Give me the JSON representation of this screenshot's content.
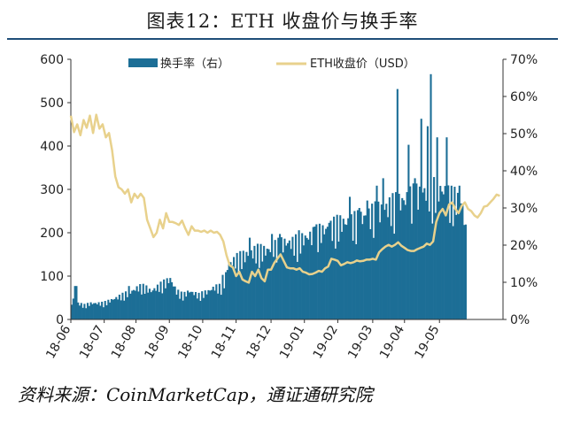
{
  "title": "图表12：ETH 收盘价与换手率",
  "source": "资料来源：CoinMarketCap，通证通研究院",
  "colors": {
    "bar": "#1c6e96",
    "line": "#e8d18c",
    "rule": "#1f4e79"
  },
  "chart_data": {
    "type": "bar+line",
    "legend": [
      "换手率（右）",
      "ETH收盘价（USD）"
    ],
    "legend_position": "top",
    "left_axis": {
      "min": 0,
      "max": 600,
      "ticks": [
        "0",
        "100",
        "200",
        "300",
        "400",
        "500",
        "600"
      ]
    },
    "right_axis": {
      "min": 0,
      "max": 70,
      "ticks": [
        "0%",
        "10%",
        "20%",
        "30%",
        "40%",
        "50%",
        "60%",
        "70%"
      ]
    },
    "x_ticks": [
      "18-06",
      "18-07",
      "18-08",
      "18-09",
      "18-10",
      "18-11",
      "18-12",
      "19-01",
      "19-02",
      "19-03",
      "19-04",
      "19-05"
    ],
    "series": [
      {
        "name": "换手率（右）",
        "kind": "bar",
        "axis": "right",
        "knots": [
          [
            0,
            4
          ],
          [
            2,
            6
          ],
          [
            4,
            4
          ],
          [
            8,
            3.5
          ],
          [
            12,
            4
          ],
          [
            20,
            4
          ],
          [
            26,
            5
          ],
          [
            32,
            6
          ],
          [
            38,
            7
          ],
          [
            42,
            8
          ],
          [
            46,
            8
          ],
          [
            50,
            7
          ],
          [
            54,
            8
          ],
          [
            58,
            9
          ],
          [
            62,
            10
          ],
          [
            66,
            7
          ],
          [
            70,
            6
          ],
          [
            74,
            7
          ],
          [
            80,
            6
          ],
          [
            86,
            7
          ],
          [
            90,
            8
          ],
          [
            94,
            8
          ],
          [
            96,
            9
          ],
          [
            98,
            13
          ],
          [
            100,
            14
          ],
          [
            104,
            15
          ],
          [
            110,
            16
          ],
          [
            116,
            17
          ],
          [
            122,
            17
          ],
          [
            128,
            18
          ],
          [
            134,
            19
          ],
          [
            140,
            19
          ],
          [
            146,
            20
          ],
          [
            152,
            21
          ],
          [
            158,
            22
          ],
          [
            164,
            23
          ],
          [
            170,
            24
          ],
          [
            176,
            24
          ],
          [
            182,
            25
          ],
          [
            188,
            26
          ],
          [
            194,
            27
          ],
          [
            200,
            28
          ],
          [
            206,
            29
          ],
          [
            212,
            30
          ],
          [
            218,
            31
          ],
          [
            224,
            32
          ],
          [
            230,
            32
          ],
          [
            234,
            32
          ],
          [
            238,
            30
          ],
          [
            242,
            30
          ],
          [
            246,
            28
          ],
          [
            248,
            22
          ]
        ],
        "spikes": [
          [
            2,
            9
          ],
          [
            3,
            9
          ],
          [
            36,
            9
          ],
          [
            95,
            12
          ],
          [
            112,
            22
          ],
          [
            126,
            23
          ],
          [
            131,
            23
          ],
          [
            143,
            24
          ],
          [
            153,
            25
          ],
          [
            162,
            26
          ],
          [
            175,
            33
          ],
          [
            181,
            30
          ],
          [
            186,
            32
          ],
          [
            192,
            36
          ],
          [
            196,
            38
          ],
          [
            202,
            34
          ],
          [
            205,
            62
          ],
          [
            212,
            47
          ],
          [
            216,
            38
          ],
          [
            220,
            54
          ],
          [
            224,
            52
          ],
          [
            226,
            66
          ],
          [
            230,
            49
          ],
          [
            236,
            49
          ],
          [
            244,
            36
          ]
        ]
      },
      {
        "name": "ETH收盘价（USD）",
        "kind": "line",
        "axis": "left",
        "points": [
          [
            0,
            470
          ],
          [
            2,
            432
          ],
          [
            4,
            450
          ],
          [
            6,
            425
          ],
          [
            8,
            460
          ],
          [
            10,
            442
          ],
          [
            12,
            470
          ],
          [
            14,
            430
          ],
          [
            16,
            472
          ],
          [
            18,
            440
          ],
          [
            20,
            450
          ],
          [
            22,
            420
          ],
          [
            24,
            430
          ],
          [
            26,
            390
          ],
          [
            28,
            330
          ],
          [
            30,
            305
          ],
          [
            32,
            300
          ],
          [
            34,
            290
          ],
          [
            36,
            300
          ],
          [
            38,
            270
          ],
          [
            40,
            290
          ],
          [
            42,
            280
          ],
          [
            44,
            290
          ],
          [
            46,
            280
          ],
          [
            48,
            230
          ],
          [
            50,
            210
          ],
          [
            52,
            190
          ],
          [
            54,
            200
          ],
          [
            56,
            230
          ],
          [
            58,
            210
          ],
          [
            60,
            245
          ],
          [
            62,
            225
          ],
          [
            64,
            225
          ],
          [
            66,
            222
          ],
          [
            68,
            218
          ],
          [
            70,
            228
          ],
          [
            72,
            210
          ],
          [
            74,
            195
          ],
          [
            76,
            215
          ],
          [
            78,
            205
          ],
          [
            80,
            205
          ],
          [
            82,
            202
          ],
          [
            84,
            205
          ],
          [
            86,
            200
          ],
          [
            88,
            205
          ],
          [
            90,
            200
          ],
          [
            92,
            202
          ],
          [
            94,
            195
          ],
          [
            96,
            180
          ],
          [
            98,
            148
          ],
          [
            100,
            125
          ],
          [
            102,
            120
          ],
          [
            104,
            100
          ],
          [
            106,
            110
          ],
          [
            108,
            92
          ],
          [
            110,
            88
          ],
          [
            112,
            85
          ],
          [
            114,
            110
          ],
          [
            116,
            100
          ],
          [
            118,
            115
          ],
          [
            120,
            95
          ],
          [
            122,
            88
          ],
          [
            124,
            115
          ],
          [
            126,
            115
          ],
          [
            128,
            130
          ],
          [
            130,
            140
          ],
          [
            132,
            150
          ],
          [
            134,
            135
          ],
          [
            136,
            120
          ],
          [
            138,
            118
          ],
          [
            140,
            118
          ],
          [
            142,
            115
          ],
          [
            144,
            118
          ],
          [
            146,
            110
          ],
          [
            148,
            108
          ],
          [
            150,
            104
          ],
          [
            152,
            105
          ],
          [
            154,
            108
          ],
          [
            156,
            112
          ],
          [
            158,
            110
          ],
          [
            160,
            118
          ],
          [
            162,
            122
          ],
          [
            164,
            140
          ],
          [
            166,
            138
          ],
          [
            168,
            135
          ],
          [
            170,
            125
          ],
          [
            172,
            128
          ],
          [
            174,
            132
          ],
          [
            176,
            130
          ],
          [
            178,
            132
          ],
          [
            180,
            136
          ],
          [
            182,
            134
          ],
          [
            184,
            135
          ],
          [
            186,
            138
          ],
          [
            188,
            138
          ],
          [
            190,
            140
          ],
          [
            192,
            138
          ],
          [
            194,
            155
          ],
          [
            196,
            162
          ],
          [
            198,
            168
          ],
          [
            200,
            172
          ],
          [
            202,
            168
          ],
          [
            204,
            172
          ],
          [
            206,
            178
          ],
          [
            208,
            170
          ],
          [
            210,
            165
          ],
          [
            212,
            160
          ],
          [
            214,
            158
          ],
          [
            216,
            158
          ],
          [
            218,
            162
          ],
          [
            220,
            165
          ],
          [
            222,
            168
          ],
          [
            224,
            175
          ],
          [
            226,
            172
          ],
          [
            228,
            180
          ],
          [
            230,
            225
          ],
          [
            232,
            245
          ],
          [
            234,
            255
          ],
          [
            236,
            240
          ],
          [
            238,
            265
          ],
          [
            240,
            270
          ],
          [
            242,
            255
          ],
          [
            244,
            245
          ],
          [
            246,
            262
          ],
          [
            248,
            270
          ],
          [
            250,
            255
          ],
          [
            252,
            250
          ],
          [
            254,
            240
          ],
          [
            256,
            235
          ],
          [
            258,
            245
          ],
          [
            260,
            260
          ],
          [
            262,
            262
          ],
          [
            264,
            270
          ],
          [
            266,
            278
          ],
          [
            268,
            288
          ],
          [
            270,
            285
          ]
        ]
      }
    ]
  }
}
